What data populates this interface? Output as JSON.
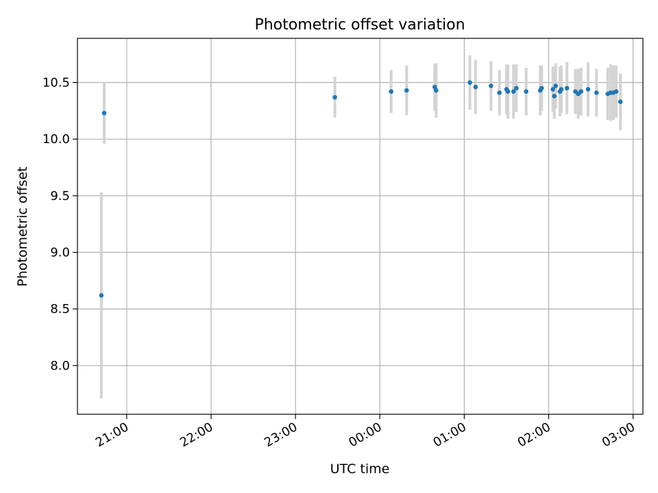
{
  "chart_data": {
    "type": "scatter",
    "title": "Photometric offset variation",
    "xlabel": "UTC time",
    "ylabel": "Photometric offset",
    "x_ticks": [
      "21:00",
      "22:00",
      "23:00",
      "00:00",
      "01:00",
      "02:00",
      "03:00"
    ],
    "y_ticks": [
      "8.0",
      "8.5",
      "9.0",
      "9.5",
      "10.0",
      "10.5"
    ],
    "xlim": [
      "20:25",
      "03:07"
    ],
    "ylim": [
      7.57,
      10.89
    ],
    "grid": true,
    "errorbar_color": "#d3d3d3",
    "marker_color": "#1f77b4",
    "points": [
      {
        "x": "20:42",
        "y": 8.62,
        "err": 0.91
      },
      {
        "x": "20:44",
        "y": 10.23,
        "err": 0.27
      },
      {
        "x": "23:28",
        "y": 10.37,
        "err": 0.18
      },
      {
        "x": "00:08",
        "y": 10.42,
        "err": 0.19
      },
      {
        "x": "00:19",
        "y": 10.43,
        "err": 0.22
      },
      {
        "x": "00:39",
        "y": 10.46,
        "err": 0.21
      },
      {
        "x": "00:40",
        "y": 10.43,
        "err": 0.24
      },
      {
        "x": "01:04",
        "y": 10.5,
        "err": 0.24
      },
      {
        "x": "01:08",
        "y": 10.46,
        "err": 0.24
      },
      {
        "x": "01:19",
        "y": 10.47,
        "err": 0.22
      },
      {
        "x": "01:25",
        "y": 10.41,
        "err": 0.2
      },
      {
        "x": "01:30",
        "y": 10.44,
        "err": 0.22
      },
      {
        "x": "01:31",
        "y": 10.42,
        "err": 0.24
      },
      {
        "x": "01:35",
        "y": 10.42,
        "err": 0.24
      },
      {
        "x": "01:37",
        "y": 10.45,
        "err": 0.21
      },
      {
        "x": "01:44",
        "y": 10.42,
        "err": 0.21
      },
      {
        "x": "01:54",
        "y": 10.43,
        "err": 0.22
      },
      {
        "x": "01:55",
        "y": 10.45,
        "err": 0.2
      },
      {
        "x": "02:03",
        "y": 10.44,
        "err": 0.2
      },
      {
        "x": "02:04",
        "y": 10.38,
        "err": 0.2
      },
      {
        "x": "02:05",
        "y": 10.47,
        "err": 0.2
      },
      {
        "x": "02:08",
        "y": 10.42,
        "err": 0.22
      },
      {
        "x": "02:09",
        "y": 10.44,
        "err": 0.21
      },
      {
        "x": "02:13",
        "y": 10.45,
        "err": 0.23
      },
      {
        "x": "02:19",
        "y": 10.42,
        "err": 0.2
      },
      {
        "x": "02:21",
        "y": 10.4,
        "err": 0.22
      },
      {
        "x": "02:23",
        "y": 10.42,
        "err": 0.21
      },
      {
        "x": "02:28",
        "y": 10.44,
        "err": 0.24
      },
      {
        "x": "02:34",
        "y": 10.41,
        "err": 0.21
      },
      {
        "x": "02:42",
        "y": 10.4,
        "err": 0.23
      },
      {
        "x": "02:44",
        "y": 10.41,
        "err": 0.25
      },
      {
        "x": "02:46",
        "y": 10.41,
        "err": 0.24
      },
      {
        "x": "02:48",
        "y": 10.42,
        "err": 0.23
      },
      {
        "x": "02:51",
        "y": 10.33,
        "err": 0.25
      }
    ]
  }
}
